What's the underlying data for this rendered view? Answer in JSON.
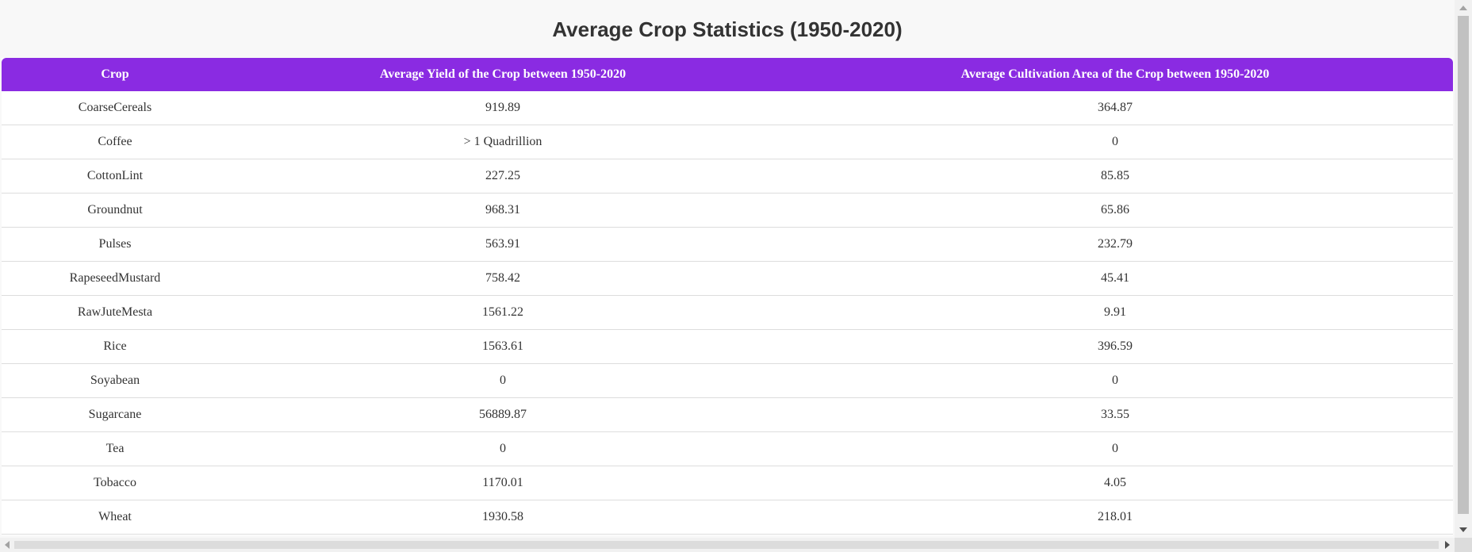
{
  "page": {
    "title": "Average Crop Statistics (1950-2020)"
  },
  "table": {
    "headers": [
      "Crop",
      "Average Yield of the Crop between 1950-2020",
      "Average Cultivation Area of the Crop between 1950-2020"
    ],
    "rows": [
      [
        "CoarseCereals",
        "919.89",
        "364.87"
      ],
      [
        "Coffee",
        "> 1 Quadrillion",
        "0"
      ],
      [
        "CottonLint",
        "227.25",
        "85.85"
      ],
      [
        "Groundnut",
        "968.31",
        "65.86"
      ],
      [
        "Pulses",
        "563.91",
        "232.79"
      ],
      [
        "RapeseedMustard",
        "758.42",
        "45.41"
      ],
      [
        "RawJuteMesta",
        "1561.22",
        "9.91"
      ],
      [
        "Rice",
        "1563.61",
        "396.59"
      ],
      [
        "Soyabean",
        "0",
        "0"
      ],
      [
        "Sugarcane",
        "56889.87",
        "33.55"
      ],
      [
        "Tea",
        "0",
        "0"
      ],
      [
        "Tobacco",
        "1170.01",
        "4.05"
      ],
      [
        "Wheat",
        "1930.58",
        "218.01"
      ]
    ]
  },
  "colors": {
    "header_bg": "#8a2be2",
    "header_text": "#ffffff",
    "page_bg": "#f8f8f8"
  }
}
